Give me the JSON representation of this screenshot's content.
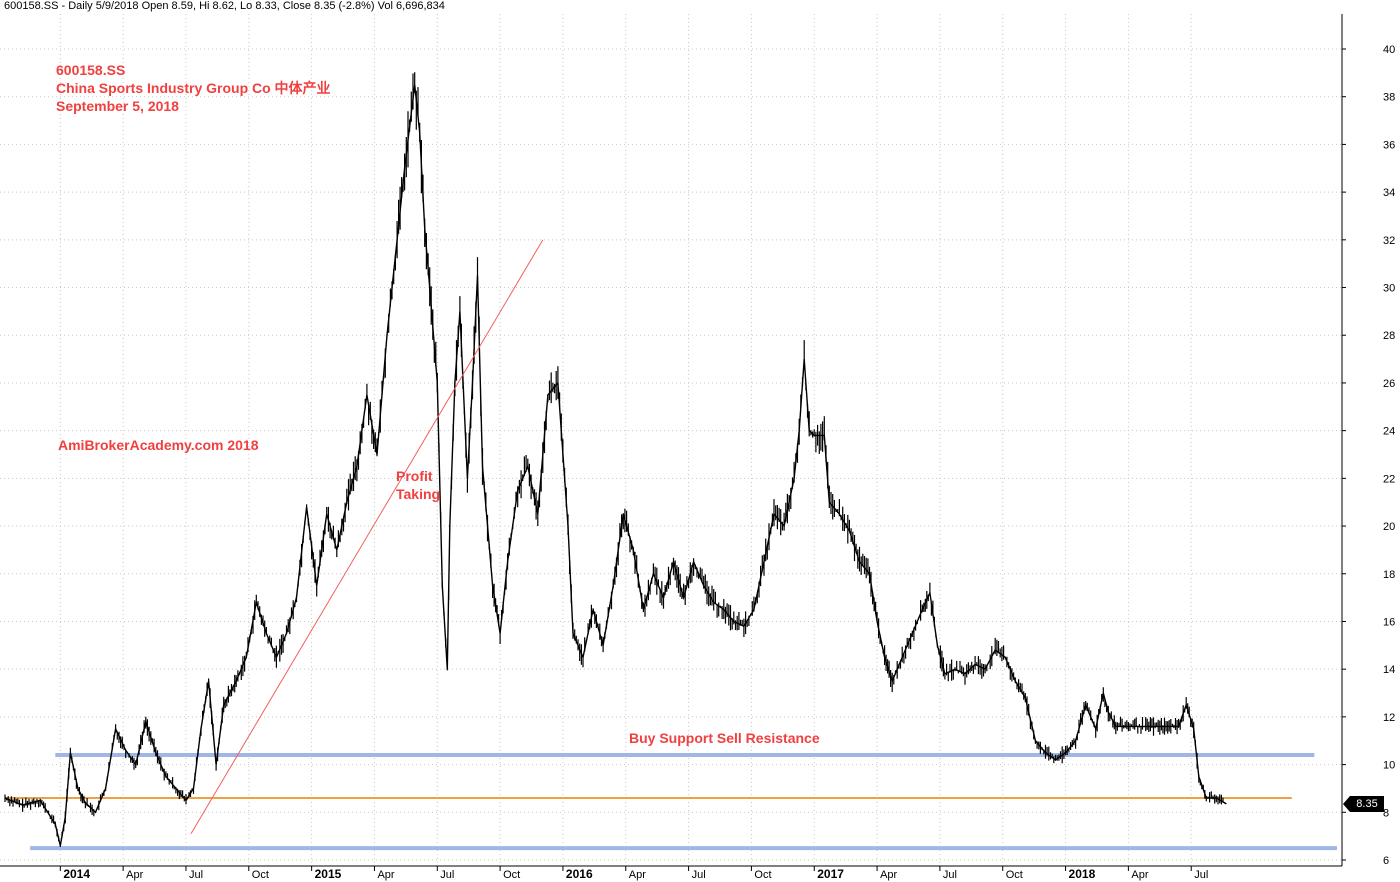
{
  "header": {
    "info_line": "600158.SS - Daily 5/9/2018 Open 8.59, Hi 8.62, Lo 8.33, Close 8.35 (-2.8%) Vol 6,696,834"
  },
  "annotations": {
    "ticker": "600158.SS",
    "company": "China Sports Industry Group Co  中体产业",
    "date": "September 5, 2018",
    "watermark": "AmiBrokerAcademy.com  2018",
    "profit_label_1": "Profit",
    "profit_label_2": "Taking",
    "support_label": "Buy Support Sell Resistance",
    "last_price": "8.35"
  },
  "colors": {
    "price": "#000000",
    "annotation_red": "#f04040",
    "support_blue": "#9fb6e6",
    "orange_line": "#f0a040",
    "trend_line": "#f06060",
    "grid": "#c8c8c8"
  },
  "chart_data": {
    "type": "line",
    "title": "600158.SS",
    "xlabel": "",
    "ylabel": "",
    "ylim": [
      6,
      41
    ],
    "y_axis_side": "right",
    "grid": true,
    "y_ticks": [
      6,
      8,
      10,
      12,
      14,
      16,
      18,
      20,
      22,
      24,
      26,
      28,
      30,
      32,
      34,
      36,
      38,
      40
    ],
    "x_tick_labels": [
      {
        "label": "2014",
        "t": 2014.0,
        "bold": true
      },
      {
        "label": "Apr",
        "t": 2014.25,
        "bold": false
      },
      {
        "label": "Jul",
        "t": 2014.5,
        "bold": false
      },
      {
        "label": "Oct",
        "t": 2014.75,
        "bold": false
      },
      {
        "label": "2015",
        "t": 2015.0,
        "bold": true
      },
      {
        "label": "Apr",
        "t": 2015.25,
        "bold": false
      },
      {
        "label": "Jul",
        "t": 2015.5,
        "bold": false
      },
      {
        "label": "Oct",
        "t": 2015.75,
        "bold": false
      },
      {
        "label": "2016",
        "t": 2016.0,
        "bold": true
      },
      {
        "label": "Apr",
        "t": 2016.25,
        "bold": false
      },
      {
        "label": "Jul",
        "t": 2016.5,
        "bold": false
      },
      {
        "label": "Oct",
        "t": 2016.75,
        "bold": false
      },
      {
        "label": "2017",
        "t": 2017.0,
        "bold": true
      },
      {
        "label": "Apr",
        "t": 2017.25,
        "bold": false
      },
      {
        "label": "Jul",
        "t": 2017.5,
        "bold": false
      },
      {
        "label": "Oct",
        "t": 2017.75,
        "bold": false
      },
      {
        "label": "2018",
        "t": 2018.0,
        "bold": true
      },
      {
        "label": "Apr",
        "t": 2018.25,
        "bold": false
      },
      {
        "label": "Jul",
        "t": 2018.5,
        "bold": false
      }
    ],
    "series": [
      {
        "type": "price",
        "points": [
          [
            2013.78,
            8.6
          ],
          [
            2013.85,
            8.3
          ],
          [
            2013.92,
            8.5
          ],
          [
            2013.98,
            7.5
          ],
          [
            2014.0,
            6.6
          ],
          [
            2014.02,
            7.8
          ],
          [
            2014.04,
            10.5
          ],
          [
            2014.07,
            9.0
          ],
          [
            2014.1,
            8.4
          ],
          [
            2014.14,
            8.0
          ],
          [
            2014.18,
            9.0
          ],
          [
            2014.22,
            11.5
          ],
          [
            2014.26,
            10.6
          ],
          [
            2014.3,
            10.0
          ],
          [
            2014.34,
            11.8
          ],
          [
            2014.38,
            10.5
          ],
          [
            2014.42,
            9.5
          ],
          [
            2014.46,
            9.0
          ],
          [
            2014.5,
            8.5
          ],
          [
            2014.53,
            9.0
          ],
          [
            2014.56,
            11.5
          ],
          [
            2014.59,
            13.5
          ],
          [
            2014.62,
            10.0
          ],
          [
            2014.65,
            12.5
          ],
          [
            2014.7,
            13.5
          ],
          [
            2014.74,
            14.5
          ],
          [
            2014.78,
            16.8
          ],
          [
            2014.82,
            15.5
          ],
          [
            2014.86,
            14.5
          ],
          [
            2014.9,
            15.5
          ],
          [
            2014.94,
            17.0
          ],
          [
            2014.98,
            20.8
          ],
          [
            2015.02,
            17.5
          ],
          [
            2015.06,
            20.5
          ],
          [
            2015.1,
            19.0
          ],
          [
            2015.14,
            21.0
          ],
          [
            2015.18,
            22.5
          ],
          [
            2015.22,
            25.5
          ],
          [
            2015.26,
            23.0
          ],
          [
            2015.3,
            28.0
          ],
          [
            2015.34,
            32.0
          ],
          [
            2015.37,
            35.0
          ],
          [
            2015.41,
            38.5
          ],
          [
            2015.43,
            36.5
          ],
          [
            2015.45,
            32.5
          ],
          [
            2015.47,
            30.0
          ],
          [
            2015.5,
            26.0
          ],
          [
            2015.52,
            17.5
          ],
          [
            2015.54,
            14.0
          ],
          [
            2015.55,
            20.0
          ],
          [
            2015.57,
            26.0
          ],
          [
            2015.59,
            29.0
          ],
          [
            2015.62,
            22.0
          ],
          [
            2015.64,
            26.0
          ],
          [
            2015.66,
            30.5
          ],
          [
            2015.68,
            22.5
          ],
          [
            2015.72,
            17.5
          ],
          [
            2015.75,
            15.5
          ],
          [
            2015.78,
            18.5
          ],
          [
            2015.82,
            21.5
          ],
          [
            2015.86,
            22.5
          ],
          [
            2015.9,
            20.5
          ],
          [
            2015.94,
            25.5
          ],
          [
            2015.98,
            26.0
          ],
          [
            2016.02,
            20.0
          ],
          [
            2016.04,
            15.5
          ],
          [
            2016.08,
            14.5
          ],
          [
            2016.12,
            16.5
          ],
          [
            2016.16,
            15.0
          ],
          [
            2016.2,
            17.5
          ],
          [
            2016.24,
            20.5
          ],
          [
            2016.28,
            19.0
          ],
          [
            2016.32,
            16.5
          ],
          [
            2016.36,
            18.0
          ],
          [
            2016.4,
            17.0
          ],
          [
            2016.44,
            18.5
          ],
          [
            2016.48,
            17.0
          ],
          [
            2016.52,
            18.5
          ],
          [
            2016.56,
            17.5
          ],
          [
            2016.6,
            16.8
          ],
          [
            2016.64,
            16.5
          ],
          [
            2016.68,
            16.0
          ],
          [
            2016.72,
            15.8
          ],
          [
            2016.76,
            16.5
          ],
          [
            2016.8,
            18.5
          ],
          [
            2016.84,
            20.5
          ],
          [
            2016.88,
            20.0
          ],
          [
            2016.92,
            22.0
          ],
          [
            2016.94,
            24.0
          ],
          [
            2016.96,
            27.0
          ],
          [
            2016.98,
            24.0
          ],
          [
            2017.0,
            23.8
          ],
          [
            2017.04,
            23.8
          ],
          [
            2017.06,
            21.0
          ],
          [
            2017.1,
            20.5
          ],
          [
            2017.14,
            19.8
          ],
          [
            2017.18,
            18.5
          ],
          [
            2017.22,
            18.0
          ],
          [
            2017.25,
            16.0
          ],
          [
            2017.28,
            14.5
          ],
          [
            2017.31,
            13.5
          ],
          [
            2017.35,
            14.5
          ],
          [
            2017.39,
            15.5
          ],
          [
            2017.43,
            16.5
          ],
          [
            2017.46,
            17.2
          ],
          [
            2017.49,
            15.0
          ],
          [
            2017.52,
            13.8
          ],
          [
            2017.56,
            14.0
          ],
          [
            2017.6,
            13.8
          ],
          [
            2017.64,
            14.2
          ],
          [
            2017.68,
            14.0
          ],
          [
            2017.72,
            14.8
          ],
          [
            2017.76,
            14.5
          ],
          [
            2017.8,
            13.5
          ],
          [
            2017.84,
            12.8
          ],
          [
            2017.88,
            11.0
          ],
          [
            2017.92,
            10.5
          ],
          [
            2017.96,
            10.2
          ],
          [
            2018.0,
            10.5
          ],
          [
            2018.04,
            11.0
          ],
          [
            2018.08,
            12.5
          ],
          [
            2018.12,
            11.5
          ],
          [
            2018.15,
            13.0
          ],
          [
            2018.17,
            12.2
          ],
          [
            2018.2,
            11.6
          ],
          [
            2018.3,
            11.6
          ],
          [
            2018.45,
            11.6
          ],
          [
            2018.48,
            12.5
          ],
          [
            2018.51,
            11.5
          ],
          [
            2018.53,
            9.5
          ],
          [
            2018.56,
            8.6
          ],
          [
            2018.6,
            8.6
          ],
          [
            2018.64,
            8.35
          ]
        ]
      }
    ],
    "horizontal_lines": [
      {
        "name": "resistance",
        "y": 10.4,
        "t_start": 2013.98,
        "t_end": 2018.99,
        "color": "#9fb6e6"
      },
      {
        "name": "last-close",
        "y": 8.6,
        "t_start": 2013.78,
        "t_end": 2018.9,
        "color": "#f0a040"
      },
      {
        "name": "support",
        "y": 6.5,
        "t_start": 2013.88,
        "t_end": 2019.08,
        "color": "#9fb6e6"
      }
    ],
    "trend_line": {
      "t1": 2014.52,
      "y1": 7.1,
      "t2": 2015.92,
      "y2": 32.0,
      "color": "#f06060"
    }
  }
}
